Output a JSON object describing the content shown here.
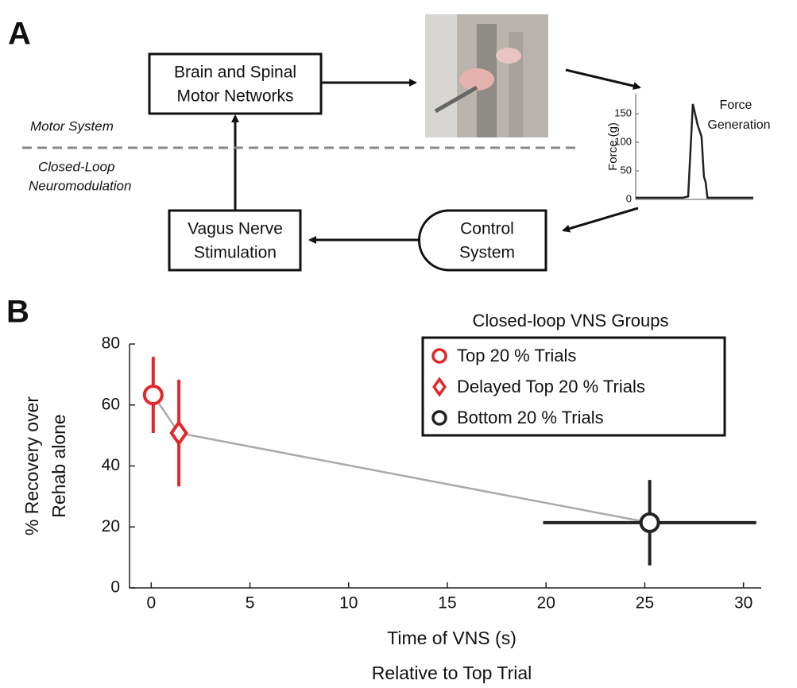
{
  "panel_labels": [
    "A",
    "B"
  ],
  "diagram": {
    "nodes": [
      {
        "lines": [
          "Brain and Spinal",
          "Motor Networks"
        ]
      },
      {
        "lines": [
          "Vagus Nerve",
          "Stimulation"
        ]
      },
      {
        "lines": [
          "Control",
          "System"
        ]
      }
    ],
    "regions": [
      [
        "Motor System"
      ],
      [
        "Closed-Loop",
        "Neuromodulation"
      ]
    ],
    "output_label": [
      "Force",
      "Generation"
    ]
  },
  "chart_data": [
    {
      "type": "line",
      "ylabel": "Force (g)",
      "x": [
        0,
        40,
        44.6,
        48.6,
        52.7,
        56,
        58,
        59.5,
        61,
        100
      ],
      "values": [
        3,
        3,
        5,
        167,
        130,
        110,
        40,
        30,
        3,
        3
      ],
      "xlim": [
        0,
        100
      ],
      "ylim": [
        0,
        185
      ],
      "yticks": [
        0,
        50,
        100,
        150
      ],
      "color": "#222222"
    },
    {
      "type": "scatter",
      "legend_title": "Closed-loop VNS Groups",
      "xlabel": [
        "Time of VNS (s)",
        "Relative to Top Trial"
      ],
      "ylabel": [
        "% Recovery over",
        "Rehab alone"
      ],
      "xlim": [
        -1.1,
        30.9
      ],
      "ylim": [
        0,
        80
      ],
      "xticks": [
        0,
        5,
        10,
        15,
        20,
        25,
        30
      ],
      "yticks": [
        0,
        20,
        40,
        60,
        80
      ],
      "connector_color": "#aaaaaa",
      "legend": "upper right",
      "series": [
        {
          "name": "Top 20 % Trials",
          "color": "#e0282a",
          "marker": "circle",
          "x": [
            0.1
          ],
          "values": [
            63.3
          ],
          "yerr": [
            12.5
          ]
        },
        {
          "name": "Delayed Top 20 % Trials",
          "color": "#e0282a",
          "marker": "diamond",
          "x": [
            1.4
          ],
          "values": [
            50.8
          ],
          "yerr": [
            17.5
          ]
        },
        {
          "name": "Bottom 20 % Trials",
          "color": "#222222",
          "marker": "circle",
          "x": [
            25.25
          ],
          "values": [
            21.4
          ],
          "yerr": [
            14
          ],
          "xerr": [
            5.4
          ]
        }
      ]
    }
  ]
}
